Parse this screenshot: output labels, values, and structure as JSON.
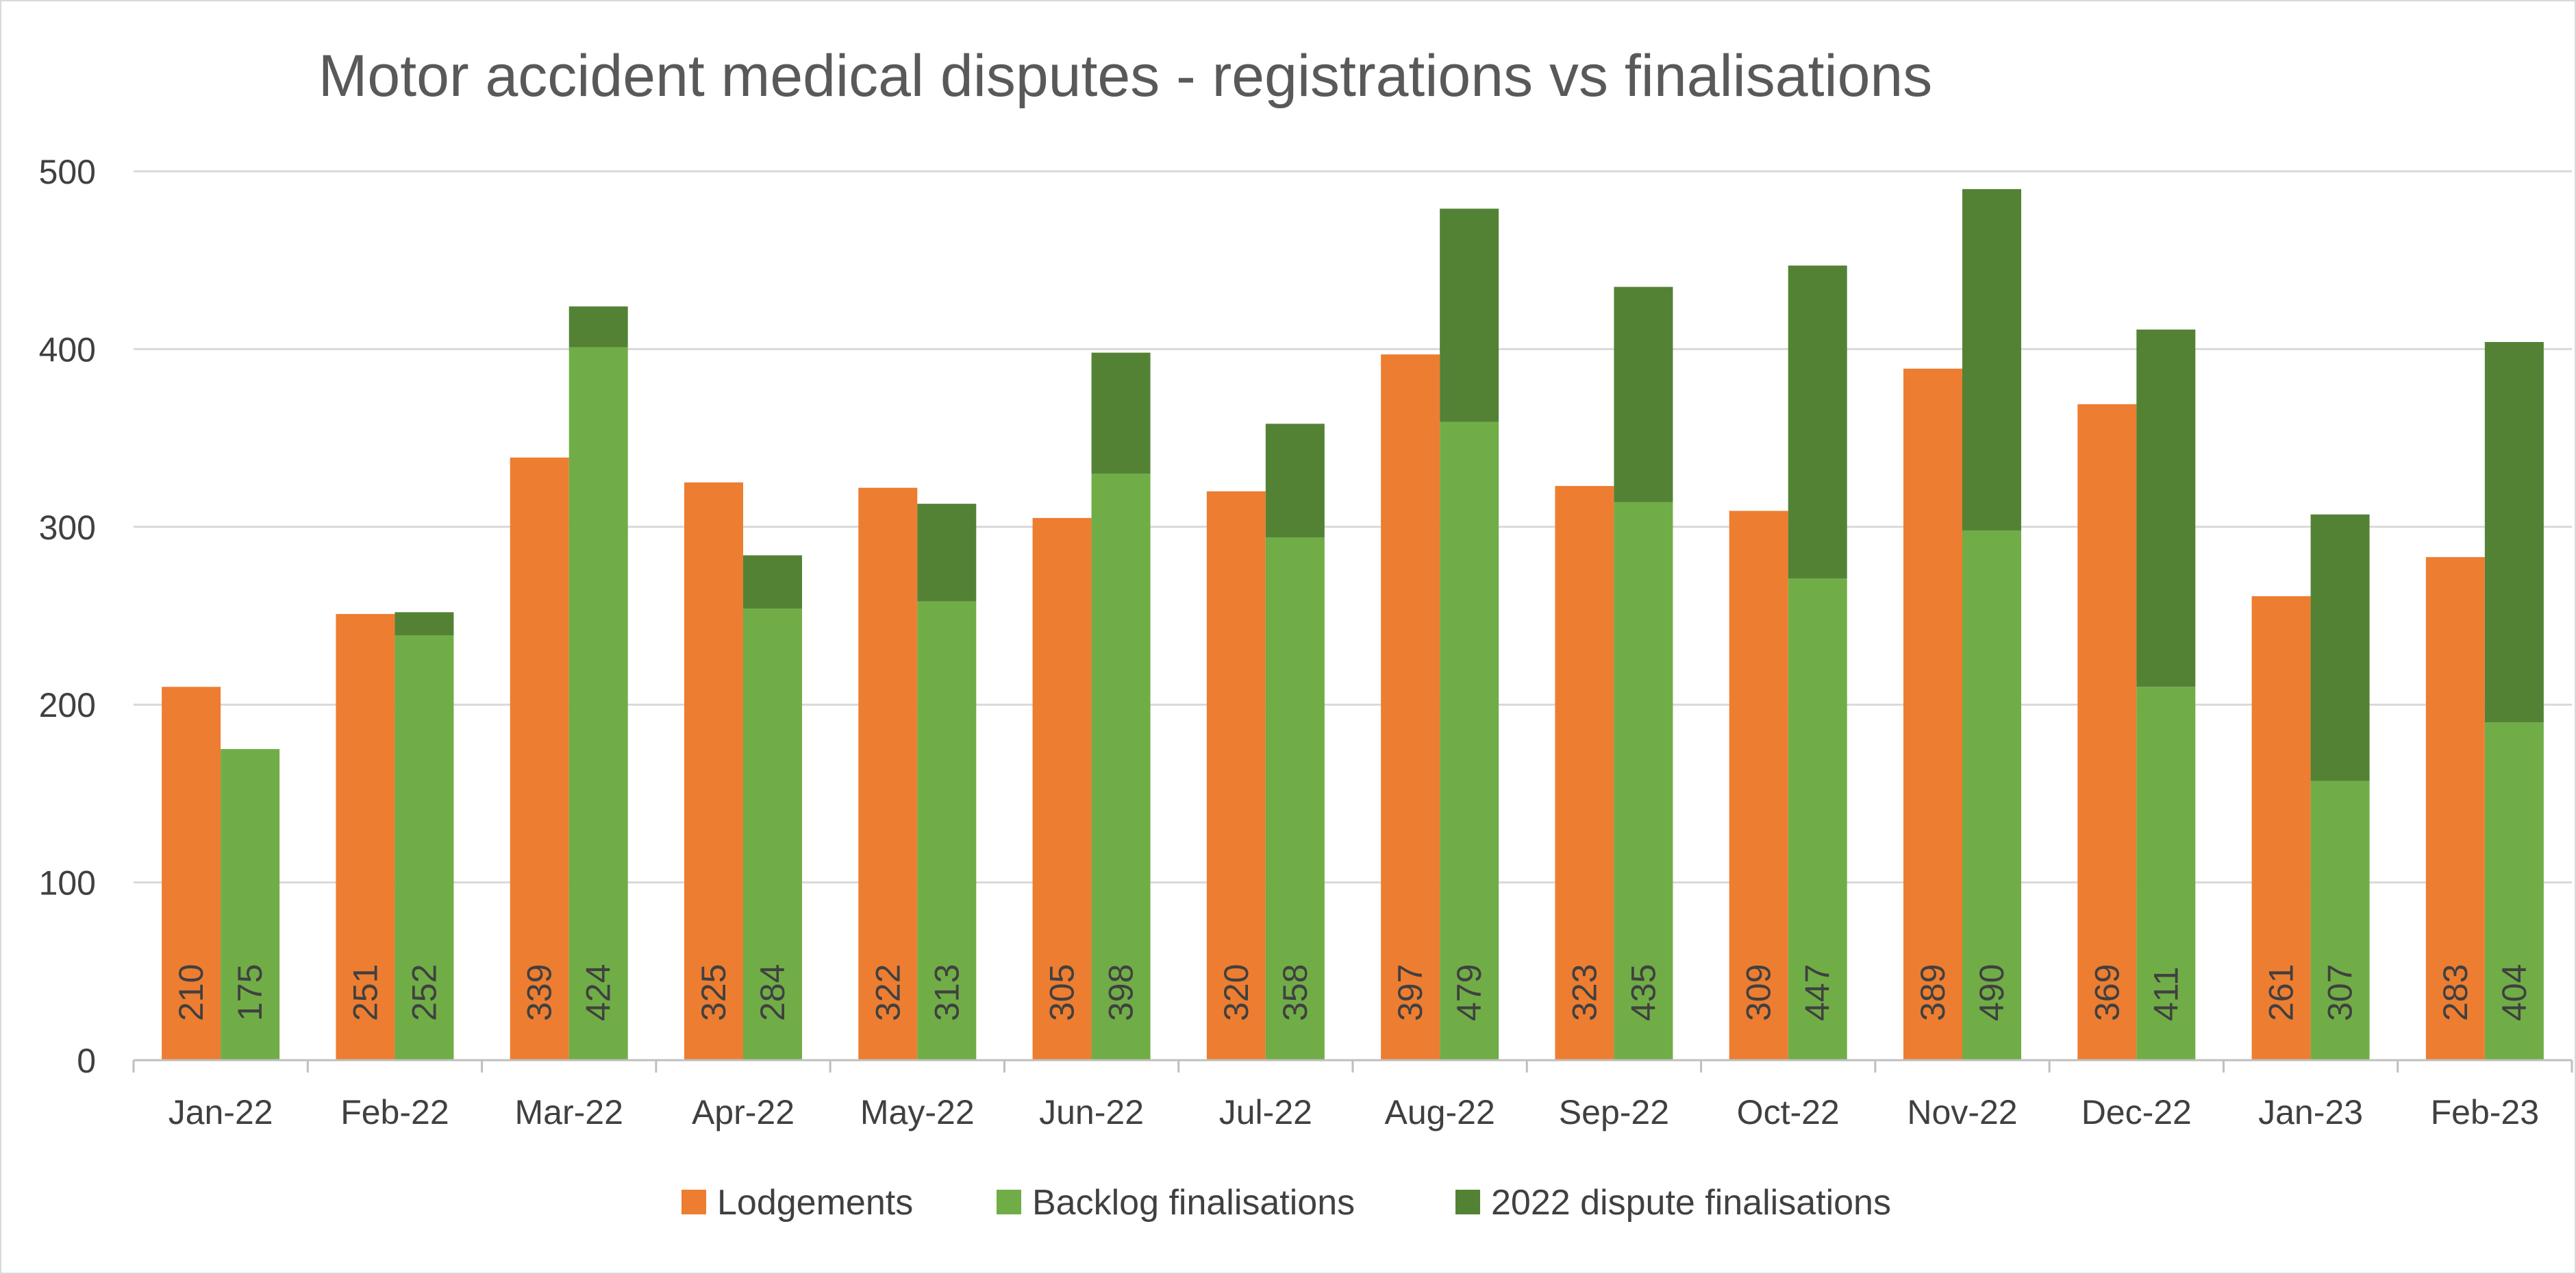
{
  "chart_data": {
    "type": "bar",
    "title": "Motor accident medical disputes - registrations vs finalisations",
    "categories": [
      "Jan-22",
      "Feb-22",
      "Mar-22",
      "Apr-22",
      "May-22",
      "Jun-22",
      "Jul-22",
      "Aug-22",
      "Sep-22",
      "Oct-22",
      "Nov-22",
      "Dec-22",
      "Jan-23",
      "Feb-23"
    ],
    "series": [
      {
        "name": "Lodgements",
        "color": "#ED7D31",
        "stack": "lodge",
        "values": [
          210,
          251,
          339,
          325,
          322,
          305,
          320,
          397,
          323,
          309,
          389,
          369,
          261,
          283
        ]
      },
      {
        "name": "Backlog finalisations",
        "color": "#70AD47",
        "stack": "final",
        "values": [
          175,
          239,
          401,
          254,
          258,
          330,
          294,
          359,
          314,
          271,
          298,
          210,
          157,
          190
        ]
      },
      {
        "name": "2022 dispute finalisations",
        "color": "#548235",
        "stack": "final",
        "values": [
          0,
          13,
          23,
          30,
          55,
          68,
          64,
          120,
          121,
          176,
          192,
          201,
          150,
          214
        ]
      }
    ],
    "data_labels": {
      "lodgements": [
        "210",
        "251",
        "339",
        "325",
        "322",
        "305",
        "320",
        "397",
        "323",
        "309",
        "389",
        "369",
        "261",
        "283"
      ],
      "finalisations_total": [
        "175",
        "252",
        "424",
        "284",
        "313",
        "398",
        "358",
        "479",
        "435",
        "447",
        "490",
        "411",
        "307",
        "404"
      ]
    },
    "y_ticks": [
      "0",
      "100",
      "200",
      "300",
      "400",
      "500"
    ],
    "ylim": [
      0,
      500
    ],
    "grid": true,
    "legend": "bottom"
  }
}
